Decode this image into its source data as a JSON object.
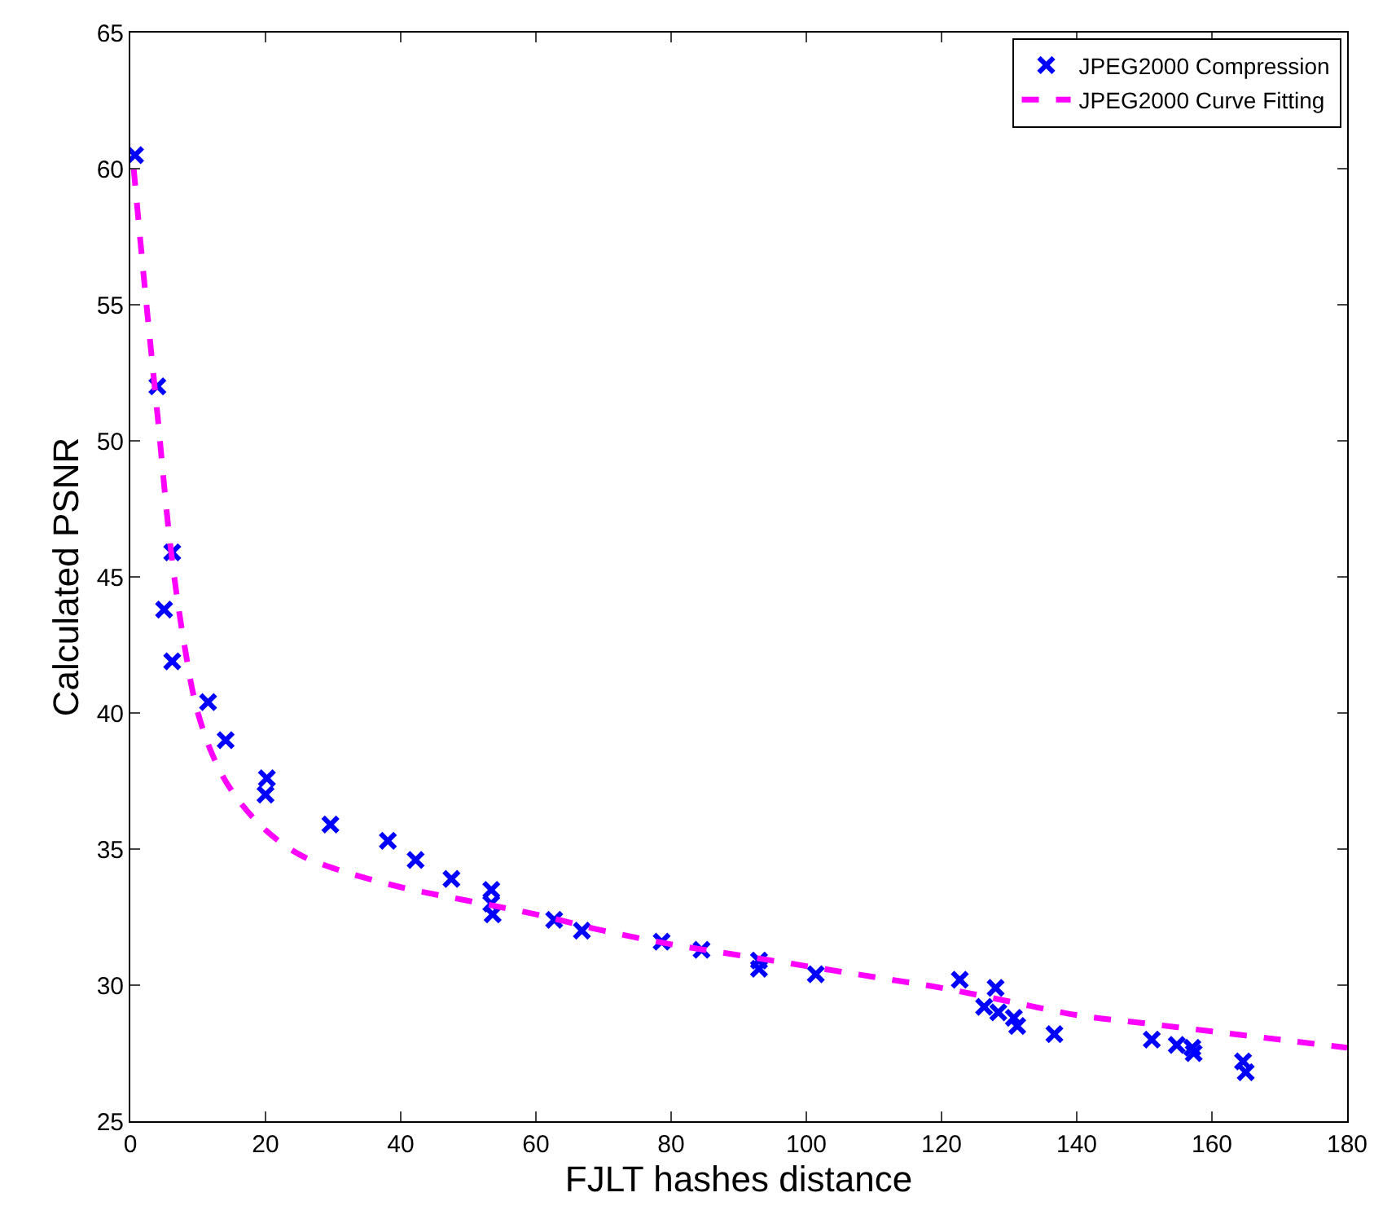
{
  "chart_data": {
    "type": "scatter",
    "xlabel": "FJLT hashes distance",
    "ylabel": "Calculated PSNR",
    "xlim": [
      0,
      180
    ],
    "xticks": [
      0,
      20,
      40,
      60,
      80,
      100,
      120,
      140,
      160,
      180
    ],
    "ylim": [
      25,
      65
    ],
    "yticks": [
      25,
      30,
      35,
      40,
      45,
      50,
      55,
      60,
      65
    ],
    "grid": false,
    "legend": "top right",
    "series": [
      {
        "name": "JPEG2000 Compression",
        "color": "#0000ff",
        "marker": "cross",
        "x": [
          0.7,
          4.0,
          6.2,
          5.0,
          6.2,
          11.5,
          14.1,
          20.2,
          20.0,
          29.6,
          38.1,
          42.2,
          47.5,
          53.4,
          53.4,
          53.6,
          62.7,
          66.8,
          78.6,
          84.5,
          93.0,
          93.0,
          101.4,
          122.7,
          128.0,
          126.3,
          128.4,
          130.7,
          131.2,
          136.7,
          151.1,
          154.8,
          157.1,
          157.3,
          164.6,
          165.0
        ],
        "values": [
          60.5,
          52.0,
          45.9,
          43.8,
          41.9,
          40.4,
          39.0,
          37.6,
          37.0,
          35.9,
          35.3,
          34.6,
          33.9,
          33.5,
          33.0,
          32.6,
          32.4,
          32.0,
          31.6,
          31.3,
          30.9,
          30.6,
          30.4,
          30.2,
          29.9,
          29.2,
          29.0,
          28.8,
          28.5,
          28.2,
          28.0,
          27.8,
          27.7,
          27.5,
          27.2,
          26.8
        ]
      },
      {
        "name": "JPEG2000 Curve Fitting",
        "type": "line",
        "color": "#ff00ff",
        "line_style": "dashed",
        "marker": "none",
        "x": [
          0.5,
          2,
          4,
          6,
          8,
          10,
          13,
          16,
          20,
          25,
          30,
          40,
          50,
          60,
          70,
          80,
          90,
          100,
          110,
          120,
          130,
          140,
          150,
          160,
          170,
          180
        ],
        "values": [
          60,
          56,
          51,
          46,
          42.5,
          40,
          38,
          36.8,
          35.7,
          34.8,
          34.3,
          33.6,
          33.1,
          32.6,
          32.0,
          31.5,
          31.1,
          30.7,
          30.3,
          29.9,
          29.4,
          28.9,
          28.6,
          28.3,
          28.0,
          27.7
        ]
      }
    ]
  }
}
